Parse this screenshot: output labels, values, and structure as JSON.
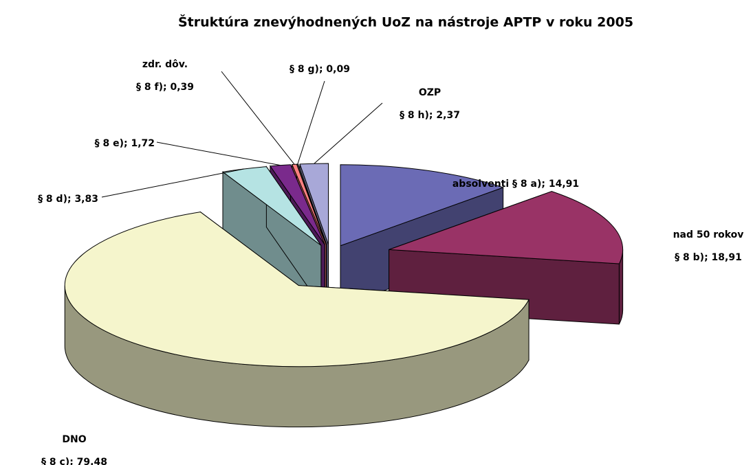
{
  "chart_data": {
    "type": "pie3d",
    "title": "Štruktúra znevýhodnených UoZ na nástroje APTP v roku 2005",
    "values": [
      14.91,
      18.91,
      79.48,
      3.83,
      1.72,
      0.39,
      0.09,
      2.37
    ],
    "value_labels": [
      [
        "absolventi § 8 a); 14,91"
      ],
      [
        "nad 50 rokov",
        "§ 8 b); 18,91"
      ],
      [
        "DNO",
        "§ 8 c); 79,48"
      ],
      [
        "§ 8 d); 3,83"
      ],
      [
        "§ 8 e); 1,72"
      ],
      [
        "zdr. dôv.",
        "§ 8 f); 0,39"
      ],
      [
        "§ 8 g); 0,09"
      ],
      [
        "OZP",
        "§ 8 h); 2,37"
      ]
    ],
    "colors": [
      "#6b6bb5",
      "#993366",
      "#f5f5cc",
      "#b5e3e3",
      "#7a2a8c",
      "#ff8080",
      "#8c8c8c",
      "#a8a8d8"
    ]
  }
}
